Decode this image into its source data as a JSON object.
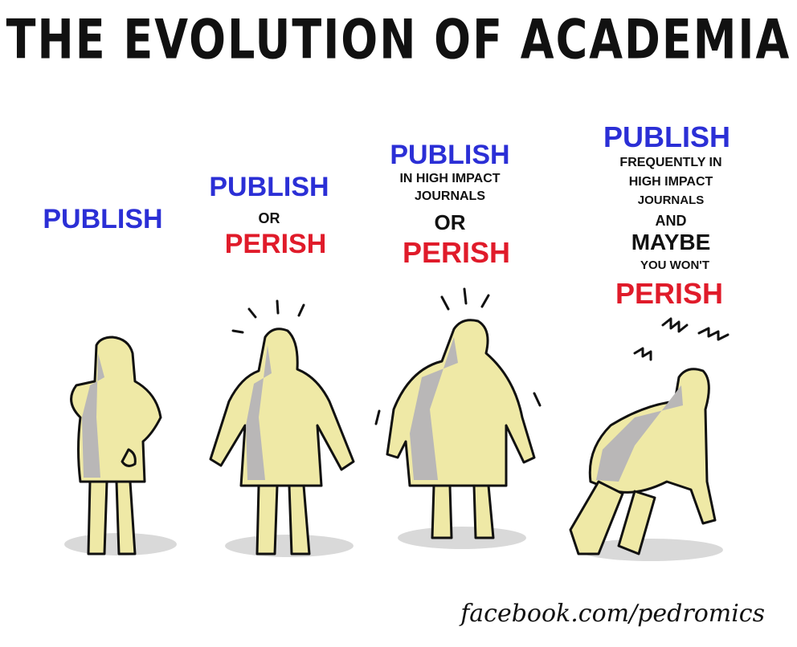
{
  "title": "THE EVOLUTION OF ACADEMIA",
  "panels": [
    {
      "lines": [
        {
          "text": "PUBLISH",
          "color": "blue"
        }
      ]
    },
    {
      "lines": [
        {
          "text": "PUBLISH",
          "color": "blue"
        },
        {
          "text": "OR",
          "color": "black"
        },
        {
          "text": "PERISH",
          "color": "red"
        }
      ]
    },
    {
      "lines": [
        {
          "text": "PUBLISH",
          "color": "blue"
        },
        {
          "text": "IN HIGH IMPACT",
          "color": "black"
        },
        {
          "text": "JOURNALS",
          "color": "black"
        },
        {
          "text": "OR",
          "color": "black"
        },
        {
          "text": "PERISH",
          "color": "red"
        }
      ]
    },
    {
      "lines": [
        {
          "text": "PUBLISH",
          "color": "blue"
        },
        {
          "text": "FREQUENTLY IN",
          "color": "black"
        },
        {
          "text": "HIGH IMPACT",
          "color": "black"
        },
        {
          "text": "JOURNALS",
          "color": "black"
        },
        {
          "text": "AND",
          "color": "black"
        },
        {
          "text": "MAYBE",
          "color": "black"
        },
        {
          "text": "YOU WON'T",
          "color": "black"
        },
        {
          "text": "PERISH",
          "color": "red"
        }
      ]
    }
  ],
  "credit": "facebook.com/pedromics",
  "colors": {
    "figure": "#efe9a6",
    "shade": "#b9b7b7",
    "ink": "#111111",
    "blue": "#2b2fd6",
    "red": "#e01b2a"
  }
}
